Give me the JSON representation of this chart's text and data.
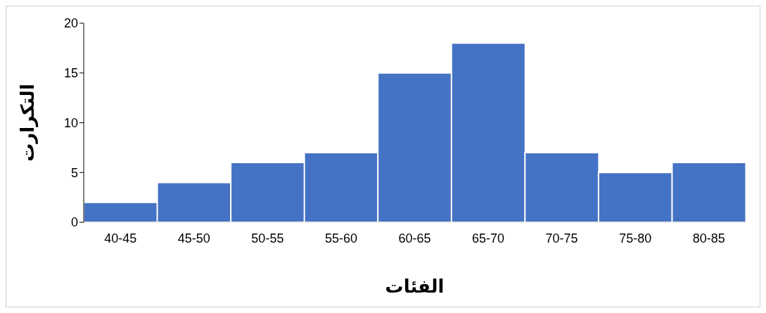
{
  "chart_data": {
    "type": "bar",
    "xlabel": "الفئات",
    "ylabel": "التكرارت",
    "categories": [
      "40-45",
      "45-50",
      "50-55",
      "55-60",
      "60-65",
      "65-70",
      "70-75",
      "75-80",
      "80-85"
    ],
    "values": [
      2,
      4,
      6,
      7,
      15,
      18,
      7,
      5,
      6
    ],
    "color": "#4472c4",
    "ylim": [
      0,
      20
    ],
    "yticks": [
      0,
      5,
      10,
      15,
      20
    ],
    "grid": false
  }
}
